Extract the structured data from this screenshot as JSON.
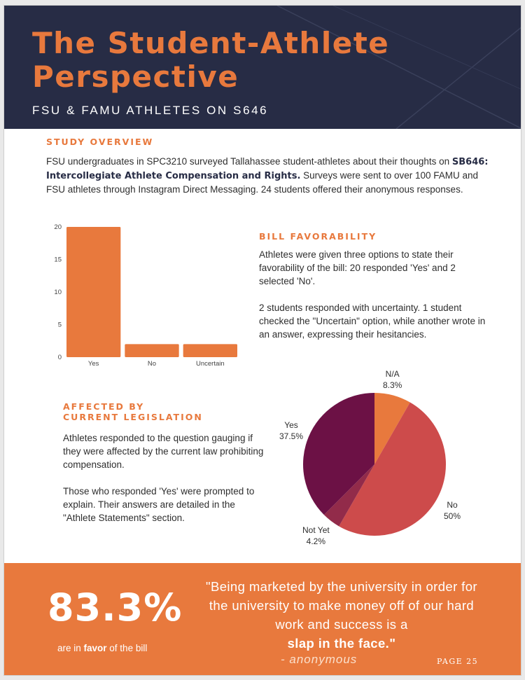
{
  "header": {
    "title_line1": "The Student-Athlete",
    "title_line2": "Perspective",
    "subtitle": "FSU & FAMU ATHLETES ON S646"
  },
  "study_overview": {
    "heading": "STUDY OVERVIEW",
    "text_1": "FSU undergraduates in SPC3210 surveyed Tallahassee student-athletes about their thoughts on ",
    "bill_name": "SB646: Intercollegiate Athlete Compensation and Rights.",
    "text_2": " Surveys were sent to over 100 FAMU and FSU athletes through Instagram Direct Messaging.  24 students offered their anonymous responses."
  },
  "bill_favorability": {
    "heading": "BILL FAVORABILITY",
    "para1": "Athletes were given three options to state their favorability of the bill:  20 responded 'Yes' and 2 selected 'No'.",
    "para2": "2 students responded with uncertainty. 1 student checked the \"Uncertain\" option, while another wrote in an answer, expressing their hesitancies."
  },
  "affected": {
    "heading_line1": "AFFECTED BY",
    "heading_line2": "CURRENT LEGISLATION",
    "para1": "Athletes responded to the question gauging if they were  affected by the current law prohibiting compensation.",
    "para2": "Those who responded 'Yes' were prompted to explain. Their answers are detailed in the \"Athlete Statements\" section."
  },
  "chart_data": [
    {
      "type": "bar",
      "categories": [
        "Yes",
        "No",
        "Uncertain"
      ],
      "values": [
        20,
        2,
        2
      ],
      "ylim": [
        0,
        20
      ],
      "yticks": [
        0,
        5,
        10,
        15,
        20
      ],
      "grid": false,
      "color": "#e8793d"
    },
    {
      "type": "pie",
      "slices": [
        {
          "label": "N/A",
          "value": 8.3,
          "pct": "8.3%",
          "color": "#e8793d"
        },
        {
          "label": "No",
          "value": 50,
          "pct": "50%",
          "color": "#cd4b4b"
        },
        {
          "label": "Not Yet",
          "value": 4.2,
          "pct": "4.2%",
          "color": "#922b4a"
        },
        {
          "label": "Yes",
          "value": 37.5,
          "pct": "37.5%",
          "color": "#6c1145"
        }
      ]
    }
  ],
  "footer": {
    "stat": "83.3%",
    "caption_pre": "are in ",
    "caption_bold": "favor",
    "caption_post": " of the bill",
    "quote_text": "\"Being marketed by the university in order for the university to make money off of our hard work and success is a",
    "quote_bold": "slap in the face.\"",
    "attribution": "- anonymous",
    "page_number": "PAGE 25"
  },
  "colors": {
    "navy": "#272c45",
    "orange": "#e8793d"
  }
}
